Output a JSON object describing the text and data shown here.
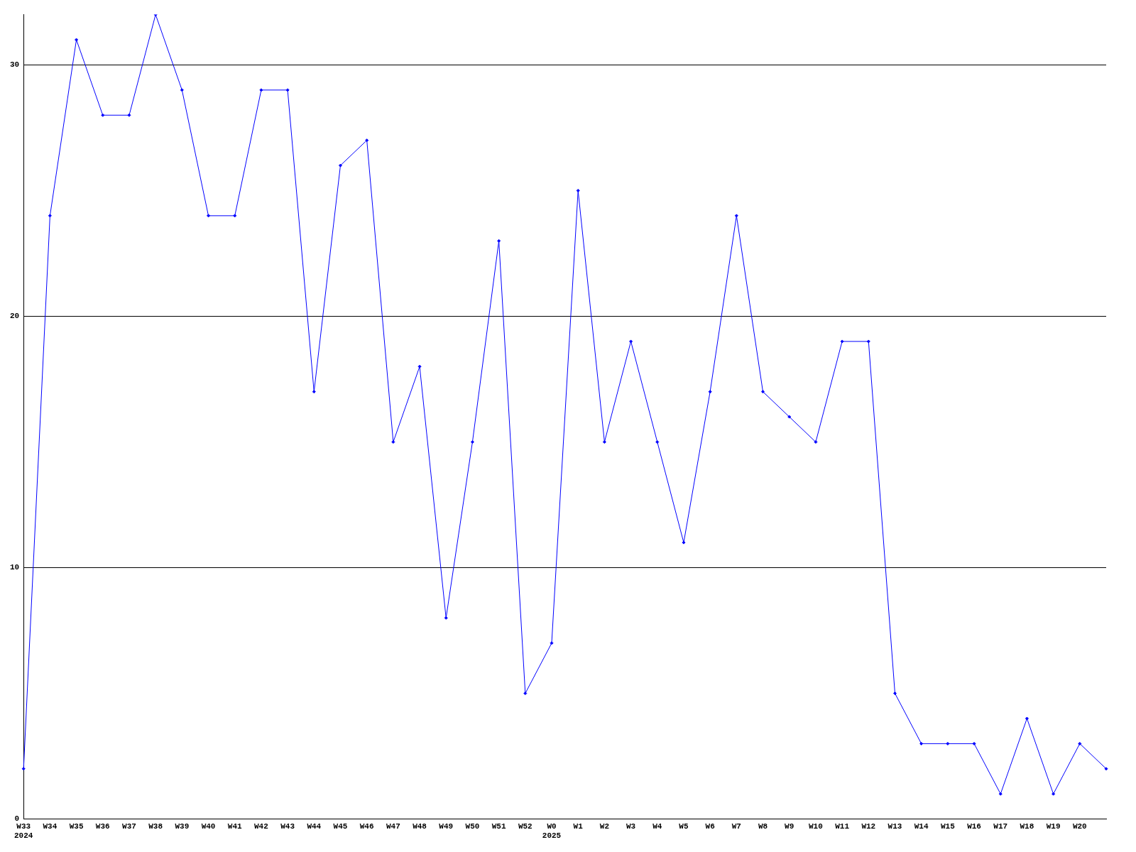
{
  "chart_data": {
    "type": "line",
    "categories": [
      "W33\n2024",
      "W34",
      "W35",
      "W36",
      "W37",
      "W38",
      "W39",
      "W40",
      "W41",
      "W42",
      "W43",
      "W44",
      "W45",
      "W46",
      "W47",
      "W48",
      "W49",
      "W50",
      "W51",
      "W52",
      "W0\n2025",
      "W1",
      "W2",
      "W3",
      "W4",
      "W5",
      "W6",
      "W7",
      "W8",
      "W9",
      "W10",
      "W11",
      "W12",
      "W13",
      "W14",
      "W15",
      "W16",
      "W17",
      "W18",
      "W19",
      "W20",
      null
    ],
    "series": [
      {
        "color": "#0000ff",
        "values": [
          2,
          24,
          31,
          28,
          28,
          32,
          29,
          24,
          24,
          29,
          29,
          17,
          26,
          27,
          15,
          18,
          8,
          15,
          23,
          5,
          7,
          25,
          15,
          19,
          15,
          11,
          17,
          24,
          17,
          16,
          15,
          19,
          19,
          5,
          3,
          3,
          3,
          1,
          4,
          1,
          3,
          2
        ]
      }
    ],
    "ylim": [
      0,
      32
    ],
    "yticks": [
      0,
      10,
      20,
      30
    ],
    "grid": "y",
    "legend": false,
    "marker": "diamond",
    "line_style": "solid"
  }
}
